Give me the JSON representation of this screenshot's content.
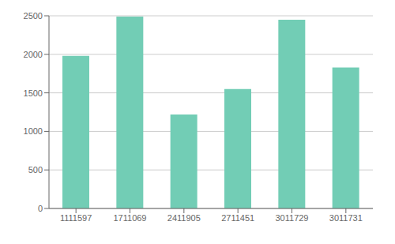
{
  "chart_data": {
    "type": "bar",
    "categories": [
      "1111597",
      "1711069",
      "2411905",
      "2711451",
      "3011729",
      "3011731"
    ],
    "values": [
      1980,
      2490,
      1220,
      1550,
      2450,
      1830
    ],
    "color": "#72cdb5",
    "ylim": [
      0,
      2500
    ],
    "yticks": [
      0,
      500,
      1000,
      1500,
      2000,
      2500
    ],
    "grid": true
  }
}
